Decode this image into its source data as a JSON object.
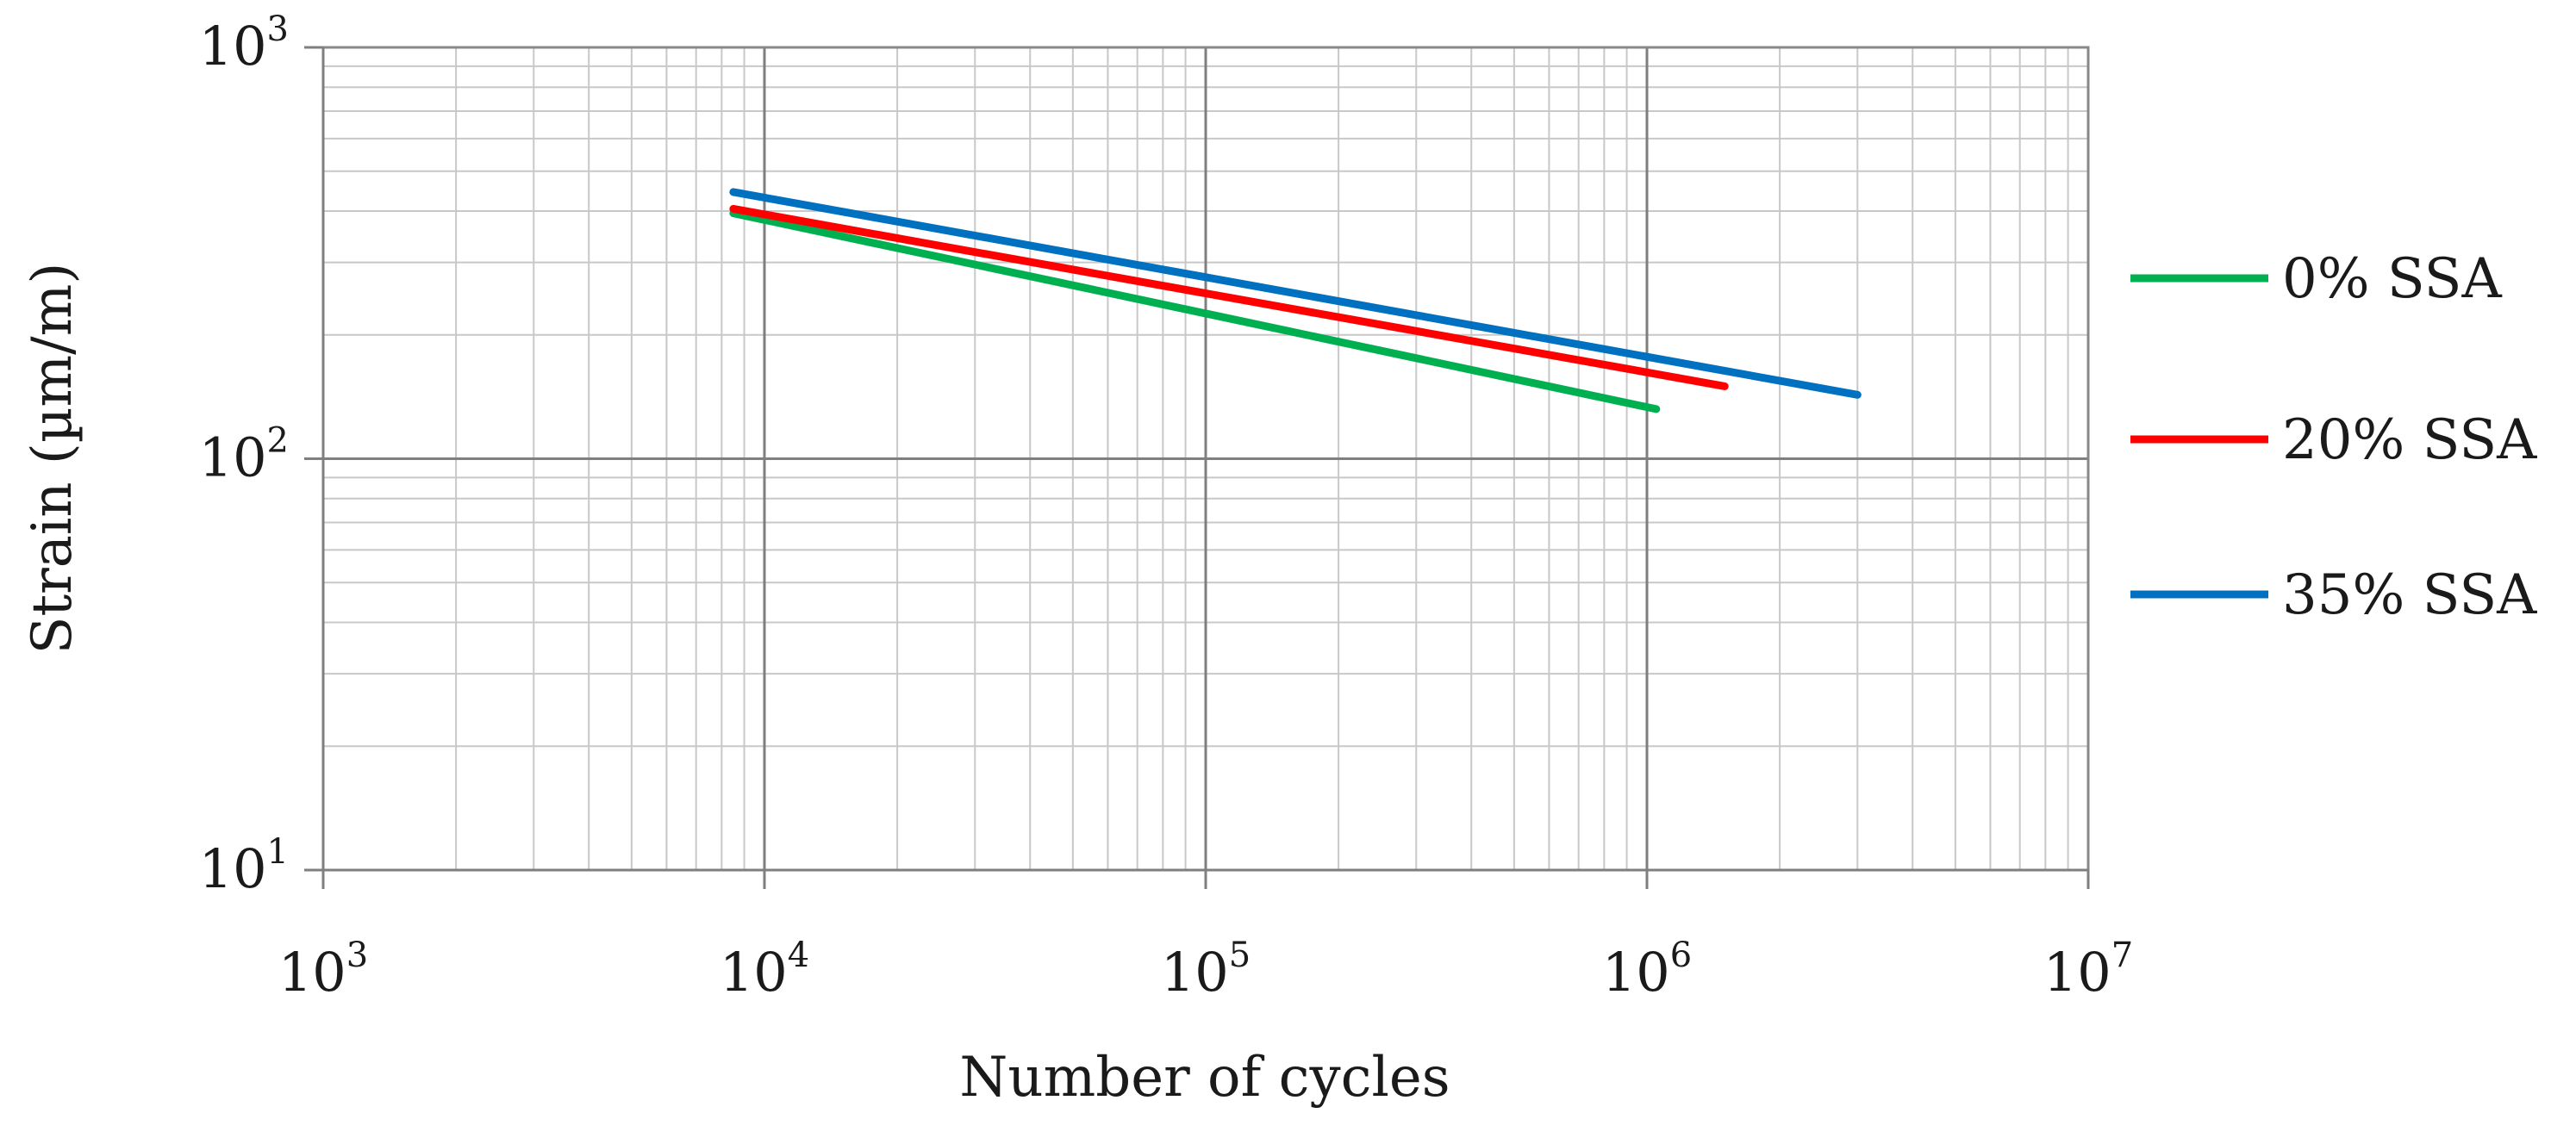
{
  "chart_data": {
    "type": "line",
    "x_scale": "log",
    "y_scale": "log",
    "xlim": [
      1000,
      10000000
    ],
    "ylim": [
      10,
      1000
    ],
    "xlabel": "Number of cycles",
    "ylabel": "Strain (µm/m)",
    "x_ticks": [
      {
        "value": 1000,
        "base": "10",
        "exp": "3"
      },
      {
        "value": 10000,
        "base": "10",
        "exp": "4"
      },
      {
        "value": 100000,
        "base": "10",
        "exp": "5"
      },
      {
        "value": 1000000,
        "base": "10",
        "exp": "6"
      },
      {
        "value": 10000000,
        "base": "10",
        "exp": "7"
      }
    ],
    "y_ticks": [
      {
        "value": 10,
        "base": "10",
        "exp": "1"
      },
      {
        "value": 100,
        "base": "10",
        "exp": "2"
      },
      {
        "value": 1000,
        "base": "10",
        "exp": "3"
      }
    ],
    "grid": true,
    "legend_position": "right",
    "series": [
      {
        "name": "0% SSA",
        "color": "#00b050",
        "x": [
          8500,
          1050000
        ],
        "y": [
          395,
          132
        ]
      },
      {
        "name": "20% SSA",
        "color": "#ff0000",
        "x": [
          8500,
          1500000
        ],
        "y": [
          405,
          150
        ]
      },
      {
        "name": "35% SSA",
        "color": "#0070c0",
        "x": [
          8500,
          3000000
        ],
        "y": [
          445,
          143
        ]
      }
    ]
  }
}
